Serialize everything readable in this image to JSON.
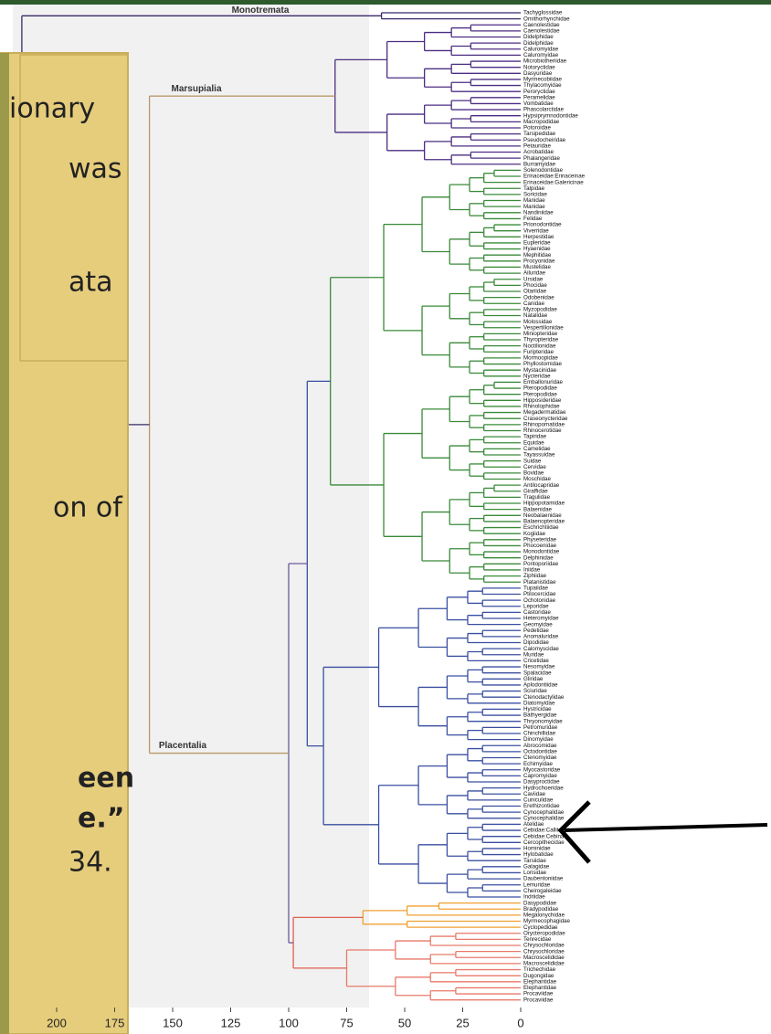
{
  "clade_labels": {
    "monotremata": "Monotremata",
    "marsupialia": "Marsupialia",
    "placentalia": "Placentalia"
  },
  "taxa": [
    "Tachyglossidae",
    "Ornithorhynchidae",
    "Caenolestidae",
    "Caenolestidae",
    "Didelphidae",
    "Didelphidae",
    "Caluromyidae",
    "Caluromyidae",
    "Microbiotheriidae",
    "Notoryctidae",
    "Dasyuridae",
    "Myrmecobiidae",
    "Thylacomyidae",
    "Peroryctidae",
    "Peramelidae",
    "Vombatidae",
    "Phascolarctidae",
    "Hypsiprymnodontidae",
    "Macropodidae",
    "Potoroidae",
    "Tarsipedidae",
    "Pseudocheiridae",
    "Petauridae",
    "Acrobatidae",
    "Phalangeridae",
    "Burramyidae",
    "Solenodontidae",
    "Erinaceidae:Erinaceinae",
    "Erinaceidae:Galericinae",
    "Talpidae",
    "Soricidae",
    "Manidae",
    "Manidae",
    "Nandiniidae",
    "Felidae",
    "Prionodontidae",
    "Viverridae",
    "Herpestidae",
    "Eupleridae",
    "Hyaenidae",
    "Mephitidae",
    "Procyonidae",
    "Mustelidae",
    "Ailuridae",
    "Ursidae",
    "Phocidae",
    "Otariidae",
    "Odobenidae",
    "Canidae",
    "Myzopodidae",
    "Natalidae",
    "Molossidae",
    "Vespertilionidae",
    "Miniopteridae",
    "Thyropteridae",
    "Noctilionidae",
    "Furipteridae",
    "Mormoopidae",
    "Phyllostomidae",
    "Mystacinidae",
    "Nycteridae",
    "Emballonuridae",
    "Pteropodidae",
    "Pteropodidae",
    "Hipposideridae",
    "Rhinolophidae",
    "Megadermatidae",
    "Craseonycteridae",
    "Rhinopomatidae",
    "Rhinocerotidae",
    "Tapiridae",
    "Equidae",
    "Camelidae",
    "Tayassuidae",
    "Suidae",
    "Cervidae",
    "Bovidae",
    "Moschidae",
    "Antilocapridae",
    "Giraffidae",
    "Tragulidae",
    "Hippopotamidae",
    "Balaenidae",
    "Neobalaenidae",
    "Balaenopteridae",
    "Eschrichtiidae",
    "Kogiidae",
    "Physeteridae",
    "Phocoenidae",
    "Monodontidae",
    "Delphinidae",
    "Pontoporiidae",
    "Iniidae",
    "Ziphiidae",
    "Platanistidae",
    "Tupaiidae",
    "Ptilocercidae",
    "Ochotonidae",
    "Leporidae",
    "Castoridae",
    "Heteromyidae",
    "Geomyidae",
    "Pedetidae",
    "Anomaluridae",
    "Dipodidae",
    "Calomyscidae",
    "Muridae",
    "Cricetidae",
    "Nesomyidae",
    "Spalacidae",
    "Gliridae",
    "Aplodontiidae",
    "Sciuridae",
    "Ctenodactylidae",
    "Diatomyidae",
    "Hystricidae",
    "Bathyergidae",
    "Thryonomyidae",
    "Petromuridae",
    "Chinchillidae",
    "Dinomyidae",
    "Abrocomidae",
    "Octodontidae",
    "Ctenomyidae",
    "Echimyidae",
    "Myocastoridae",
    "Capromyidae",
    "Dasyproctidae",
    "Hydrochoeridae",
    "Caviidae",
    "Cuniculidae",
    "Erethizontidae",
    "Cynocephalidae",
    "Cynocephalidae",
    "Atelidae",
    "Cebidae:Callitrichinae",
    "Cebidae:Cebinae",
    "Cercopithecidae",
    "Hominidae",
    "Hylobatidae",
    "Tarsiidae",
    "Galagidae",
    "Lorisidae",
    "Daubentoniidae",
    "Lemuridae",
    "Cheirogaleidae",
    "Indriidae",
    "Dasypodidae",
    "Bradypodidae",
    "Megalonychidae",
    "Myrmecophagidae",
    "Cyclopedidae",
    "Orycteropodidae",
    "Tenrecidae",
    "Chrysochloridae",
    "Chrysochloridae",
    "Macroscelididae",
    "Macroscelididae",
    "Trichechidae",
    "Dugongidae",
    "Elephantidae",
    "Elephantidae",
    "Procaviidae",
    "Procaviidae"
  ],
  "axis_ticks": [
    200,
    175,
    150,
    125,
    100,
    75,
    50,
    25,
    0
  ],
  "overlay_text": [
    "ionary",
    "was",
    "ata",
    "on of",
    "een",
    "e.”",
    "34."
  ]
}
